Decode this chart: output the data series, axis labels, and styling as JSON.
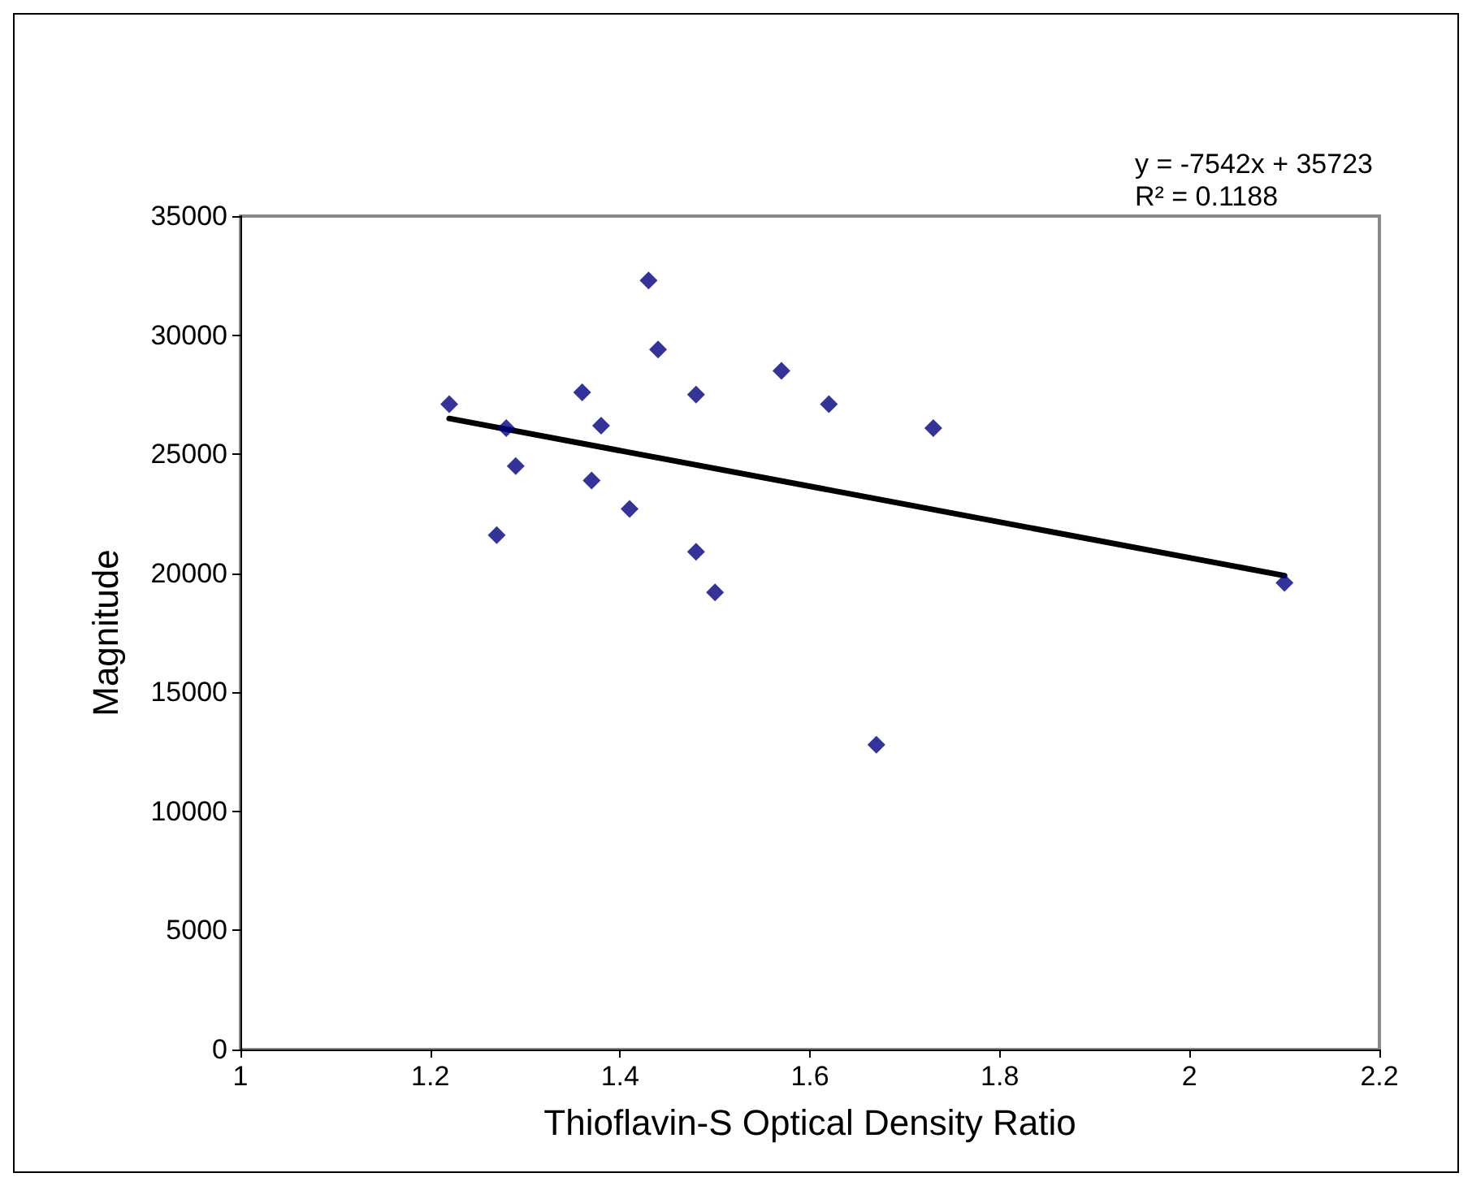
{
  "chart_data": {
    "type": "scatter",
    "xlabel": "Thioflavin-S Optical Density Ratio",
    "ylabel": "Magnitude",
    "annotations": [
      "y = -7542x + 35723\nR² = 0.1188"
    ],
    "xlim": [
      1,
      2.2
    ],
    "xticks": [
      1,
      1.2,
      1.4,
      1.6,
      1.8,
      2,
      2.2
    ],
    "ylim": [
      0,
      35000
    ],
    "yticks": [
      0,
      5000,
      10000,
      15000,
      20000,
      25000,
      30000,
      35000
    ],
    "grid": false,
    "marker": "diamond",
    "series": [
      {
        "color": "#000080",
        "x": [
          1.22,
          1.28,
          1.29,
          1.27,
          1.36,
          1.38,
          1.37,
          1.41,
          1.43,
          1.44,
          1.48,
          1.48,
          1.5,
          1.57,
          1.62,
          1.67,
          1.73,
          2.1
        ],
        "values": [
          27100,
          26100,
          24500,
          21600,
          27600,
          26200,
          23900,
          22700,
          32300,
          29400,
          27500,
          20900,
          19200,
          28500,
          27100,
          12800,
          26100,
          19600
        ]
      },
      {
        "type": "line",
        "color": "#000000",
        "x": [
          1.22,
          2.1
        ],
        "values": [
          26500,
          19900
        ],
        "marker": "none",
        "line_style": "solid"
      }
    ]
  }
}
